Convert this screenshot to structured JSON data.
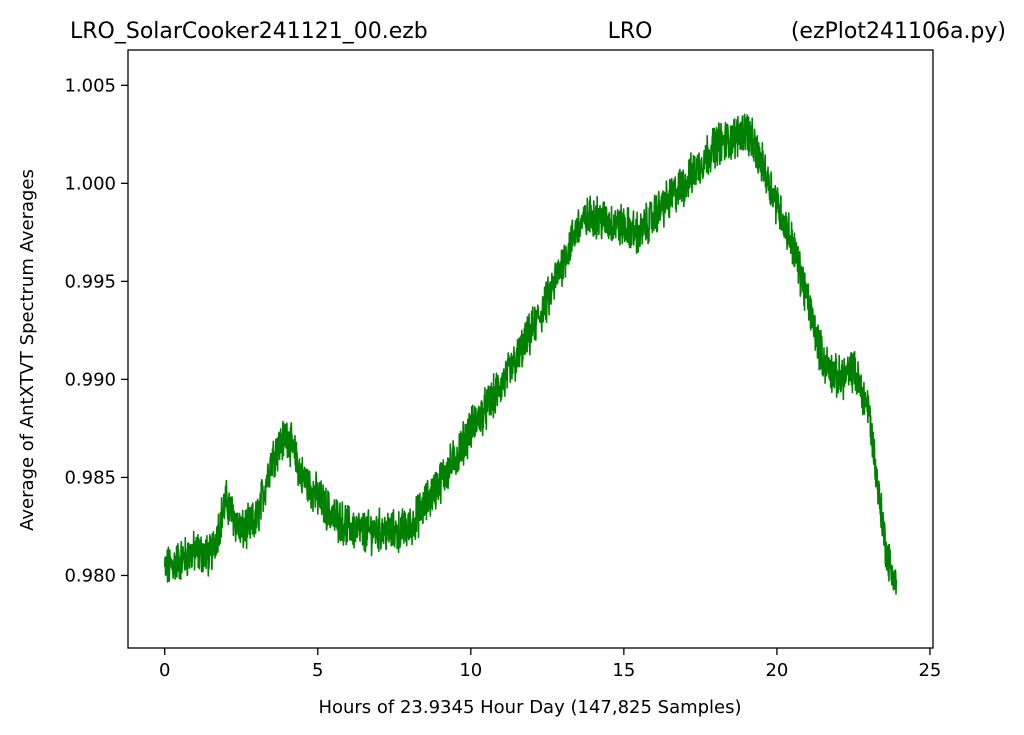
{
  "chart_data": {
    "type": "line",
    "title_left": "LRO_SolarCooker241121_00.ezb",
    "title_center": "LRO",
    "title_right": "(ezPlot241106a.py)",
    "xlabel": "Hours of 23.9345 Hour Day  (147,825 Samples)",
    "ylabel": "Average of AntXTVT Spectrum Averages",
    "xlim": [
      -1.2,
      25.1
    ],
    "ylim": [
      0.9763,
      1.0068
    ],
    "x_ticks": [
      0,
      5,
      10,
      15,
      20,
      25
    ],
    "x_tick_labels": [
      "0",
      "5",
      "10",
      "15",
      "20",
      "25"
    ],
    "y_ticks": [
      0.98,
      0.985,
      0.99,
      0.995,
      1.0,
      1.005
    ],
    "y_tick_labels": [
      "0.980",
      "0.985",
      "0.990",
      "0.995",
      "1.000",
      "1.005"
    ],
    "grid": false,
    "series": [
      {
        "color": "#008000",
        "x": [
          0,
          0.5,
          1,
          1.5,
          2,
          2.5,
          3,
          3.5,
          4,
          4.5,
          5,
          5.5,
          6,
          6.5,
          7,
          7.5,
          8,
          8.5,
          9,
          9.5,
          10,
          10.5,
          11,
          11.5,
          12,
          12.5,
          13,
          13.5,
          14,
          14.5,
          15,
          15.5,
          16,
          16.5,
          17,
          17.5,
          18,
          18.5,
          19,
          19.5,
          20,
          20.5,
          21,
          21.5,
          22,
          22.5,
          23,
          23.3,
          23.6,
          23.9
        ],
        "y": [
          0.9803,
          0.9808,
          0.9812,
          0.981,
          0.9838,
          0.9822,
          0.9828,
          0.986,
          0.9872,
          0.985,
          0.984,
          0.983,
          0.9825,
          0.9822,
          0.9823,
          0.9822,
          0.9824,
          0.9836,
          0.9848,
          0.986,
          0.9875,
          0.9885,
          0.9897,
          0.991,
          0.9925,
          0.994,
          0.996,
          0.9978,
          0.9984,
          0.998,
          0.9978,
          0.9974,
          0.9984,
          0.9992,
          1.0,
          1.001,
          1.002,
          1.0022,
          1.0028,
          1.001,
          0.999,
          0.997,
          0.994,
          0.991,
          0.99,
          0.9905,
          0.9885,
          0.9845,
          0.981,
          0.9795
        ],
        "noise_amplitude": 0.0009
      }
    ]
  }
}
